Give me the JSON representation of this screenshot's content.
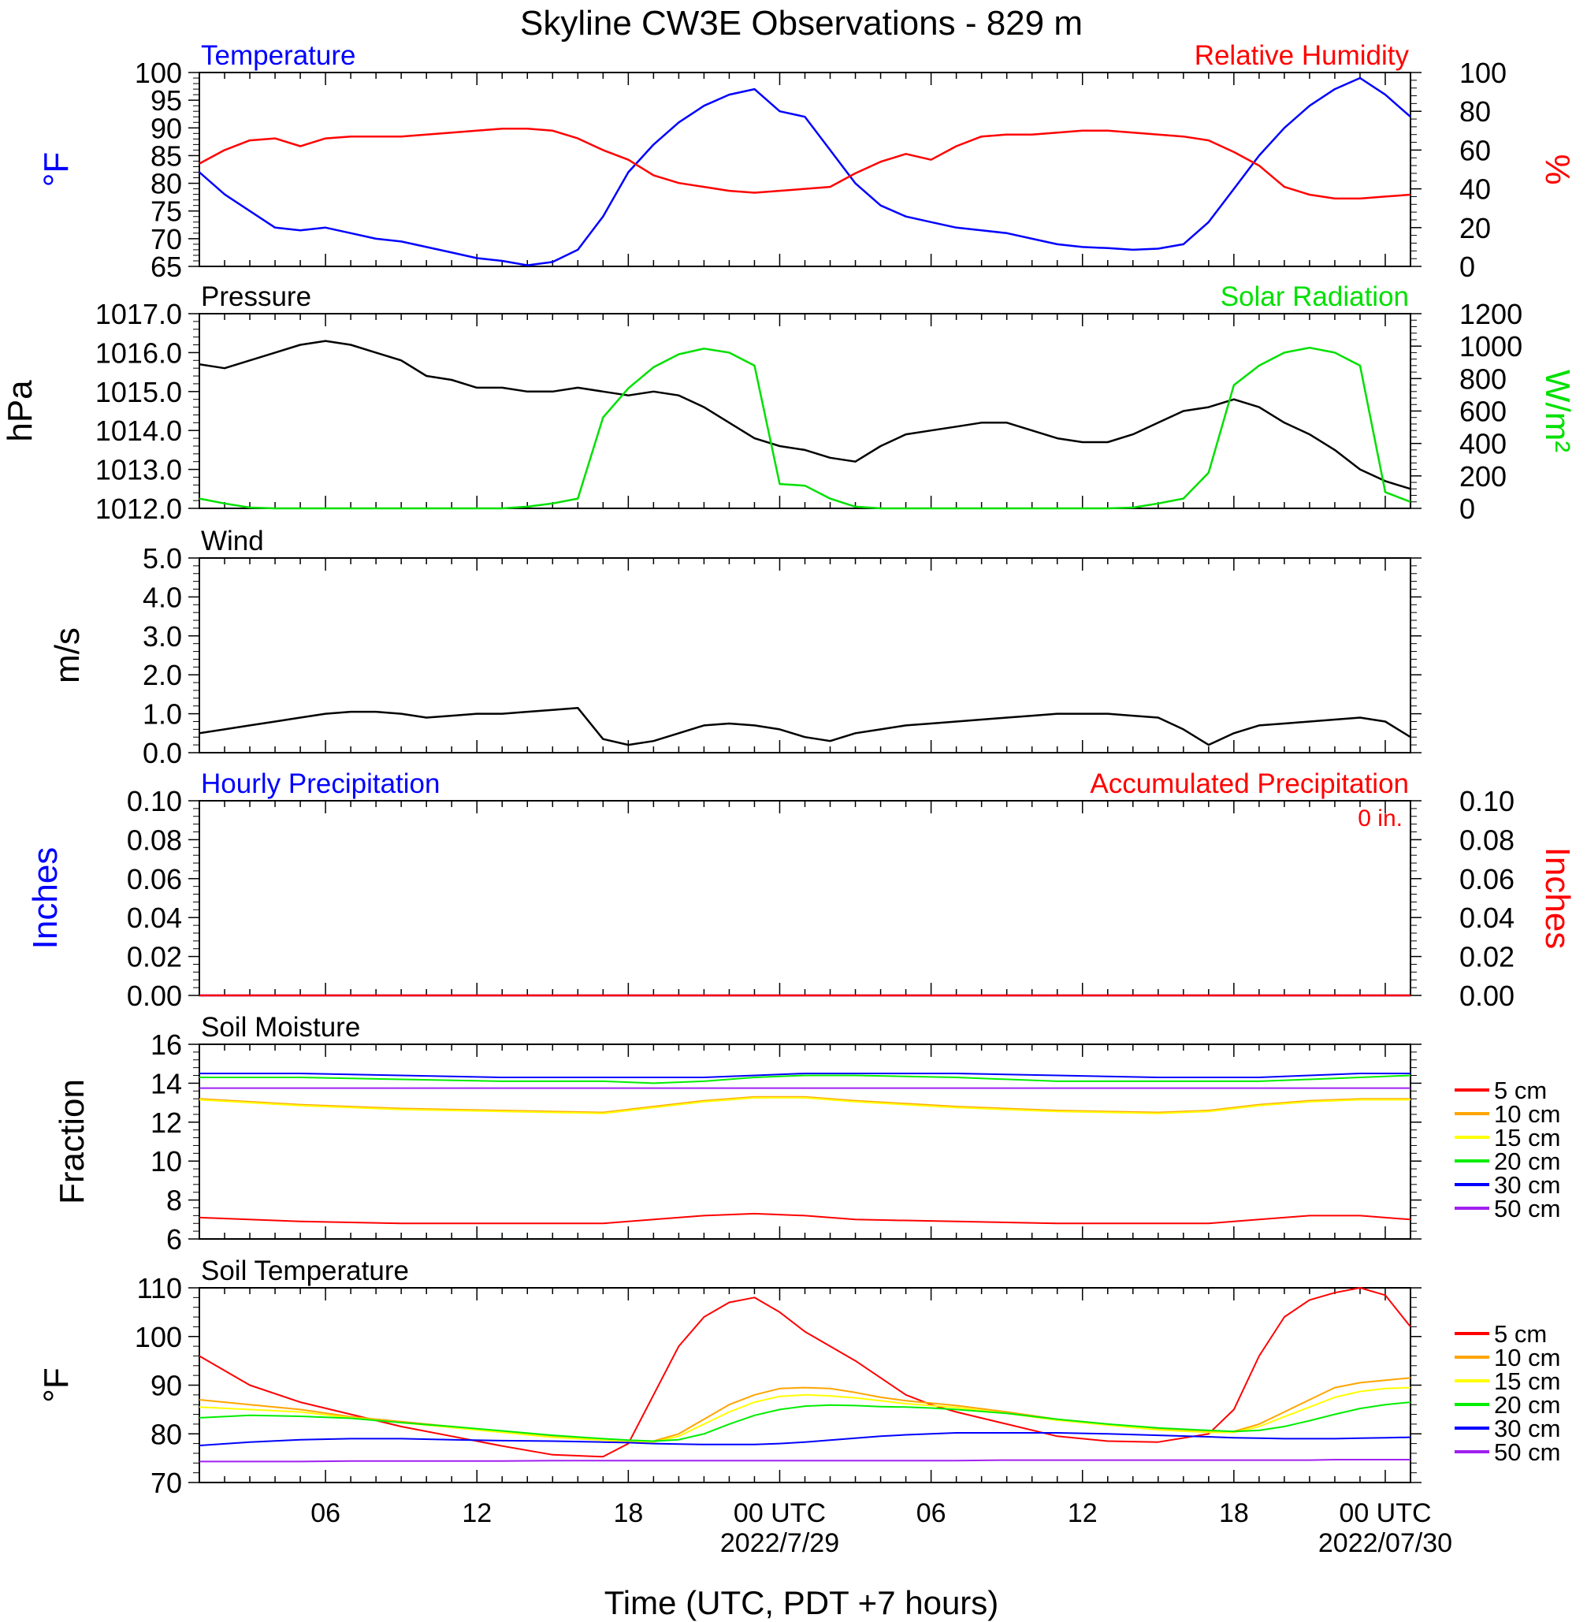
{
  "title": "Skyline CW3E Observations - 829 m",
  "xlabel": "Time (UTC, PDT +7 hours)",
  "x_ticks": [
    {
      "hour": 5,
      "label": "06",
      "date": ""
    },
    {
      "hour": 11,
      "label": "12",
      "date": ""
    },
    {
      "hour": 17,
      "label": "18",
      "date": ""
    },
    {
      "hour": 23,
      "label": "00 UTC",
      "date": "2022/7/29"
    },
    {
      "hour": 29,
      "label": "06",
      "date": ""
    },
    {
      "hour": 35,
      "label": "12",
      "date": ""
    },
    {
      "hour": 41,
      "label": "18",
      "date": ""
    },
    {
      "hour": 47,
      "label": "00 UTC",
      "date": "2022/07/30"
    }
  ],
  "colors": {
    "temp": "#0000ff",
    "rh": "#ff0000",
    "pressure": "#000000",
    "solar": "#00e000",
    "wind": "#000000",
    "barb": "#ff0000",
    "precip_hourly": "#0000ff",
    "precip_acc": "#ff0000"
  },
  "soil_legend": [
    {
      "label": "5 cm",
      "color": "#ff0000"
    },
    {
      "label": "10 cm",
      "color": "#ffa500"
    },
    {
      "label": "15 cm",
      "color": "#ffff00"
    },
    {
      "label": "20 cm",
      "color": "#00ee00"
    },
    {
      "label": "30 cm",
      "color": "#0000ff"
    },
    {
      "label": "50 cm",
      "color": "#a020f0"
    }
  ],
  "chart_data": [
    {
      "type": "line",
      "panel": "temperature_rh",
      "left_title": "Temperature",
      "right_title": "Relative Humidity",
      "ylabel_left": "oF",
      "ylabel_right": "%",
      "ylim_left": [
        65,
        100
      ],
      "ylim_right": [
        0,
        100
      ],
      "yticks_left": [
        65,
        70,
        75,
        80,
        85,
        90,
        95,
        100
      ],
      "yticks_right": [
        0,
        20,
        40,
        60,
        80,
        100
      ],
      "x_hours": [
        0,
        1,
        2,
        3,
        4,
        5,
        6,
        7,
        8,
        9,
        10,
        11,
        12,
        13,
        14,
        15,
        16,
        17,
        18,
        19,
        20,
        21,
        22,
        23,
        24,
        25,
        26,
        27,
        28,
        29,
        30,
        31,
        32,
        33,
        34,
        35,
        36,
        37,
        38,
        39,
        40,
        41,
        42,
        43,
        44,
        45,
        46,
        47,
        48
      ],
      "series": [
        {
          "name": "Temperature",
          "axis": "left",
          "values": [
            82,
            78,
            75,
            72,
            71.5,
            72,
            71,
            70,
            69.5,
            68.5,
            67.5,
            66.5,
            66,
            65.2,
            65.8,
            68,
            74,
            82,
            87,
            91,
            94,
            96,
            97,
            93,
            92,
            86,
            80,
            76,
            74,
            73,
            72,
            71.5,
            71,
            70,
            69,
            68.5,
            68.3,
            68,
            68.2,
            69,
            73,
            79,
            85,
            90,
            94,
            97,
            99,
            96,
            92
          ]
        },
        {
          "name": "Relative Humidity",
          "axis": "left_rh",
          "values": [
            53,
            60,
            65,
            66,
            62,
            66,
            67,
            67,
            67,
            68,
            69,
            70,
            71,
            71,
            70,
            66,
            60,
            55,
            47,
            43,
            41,
            39,
            38,
            39,
            40,
            41,
            48,
            54,
            58,
            55,
            62,
            67,
            68,
            68,
            69,
            70,
            70,
            69,
            68,
            67,
            65,
            59,
            52,
            41,
            37,
            35,
            35,
            36,
            37
          ]
        }
      ]
    },
    {
      "type": "line",
      "panel": "pressure_solar",
      "left_title": "Pressure",
      "right_title": "Solar Radiation",
      "ylabel_left": "hPa",
      "ylabel_right": "W/m2",
      "ylim_left": [
        1012,
        1017
      ],
      "ylim_right": [
        0,
        1200
      ],
      "yticks_left": [
        1012.0,
        1013.0,
        1014.0,
        1015.0,
        1016.0,
        1017.0
      ],
      "yticks_right": [
        0,
        200,
        400,
        600,
        800,
        1000,
        1200
      ],
      "x_hours": [
        0,
        1,
        2,
        3,
        4,
        5,
        6,
        7,
        8,
        9,
        10,
        11,
        12,
        13,
        14,
        15,
        16,
        17,
        18,
        19,
        20,
        21,
        22,
        23,
        24,
        25,
        26,
        27,
        28,
        29,
        30,
        31,
        32,
        33,
        34,
        35,
        36,
        37,
        38,
        39,
        40,
        41,
        42,
        43,
        44,
        45,
        46,
        47,
        48
      ],
      "series": [
        {
          "name": "Pressure",
          "axis": "left",
          "values": [
            1015.7,
            1015.6,
            1015.8,
            1016.0,
            1016.2,
            1016.3,
            1016.2,
            1016.0,
            1015.8,
            1015.4,
            1015.3,
            1015.1,
            1015.1,
            1015.0,
            1015.0,
            1015.1,
            1015.0,
            1014.9,
            1015.0,
            1014.9,
            1014.6,
            1014.2,
            1013.8,
            1013.6,
            1013.5,
            1013.3,
            1013.2,
            1013.6,
            1013.9,
            1014.0,
            1014.1,
            1014.2,
            1014.2,
            1014.0,
            1013.8,
            1013.7,
            1013.7,
            1013.9,
            1014.2,
            1014.5,
            1014.6,
            1014.8,
            1014.6,
            1014.2,
            1013.9,
            1013.5,
            1013.0,
            1012.7,
            1012.5
          ]
        },
        {
          "name": "Solar Radiation",
          "axis": "right",
          "values": [
            60,
            30,
            5,
            0,
            0,
            0,
            0,
            0,
            0,
            0,
            0,
            0,
            0,
            10,
            30,
            60,
            560,
            740,
            870,
            950,
            985,
            960,
            880,
            150,
            140,
            60,
            10,
            0,
            0,
            0,
            0,
            0,
            0,
            0,
            0,
            0,
            0,
            5,
            30,
            60,
            220,
            760,
            880,
            960,
            990,
            960,
            880,
            100,
            40
          ]
        }
      ]
    },
    {
      "type": "line",
      "panel": "wind",
      "left_title": "Wind",
      "ylabel_left": "m/s",
      "ylim_left": [
        0,
        5
      ],
      "yticks_left": [
        0.0,
        1.0,
        2.0,
        3.0,
        4.0,
        5.0
      ],
      "x_hours": [
        0,
        1,
        2,
        3,
        4,
        5,
        6,
        7,
        8,
        9,
        10,
        11,
        12,
        13,
        14,
        15,
        16,
        17,
        18,
        19,
        20,
        21,
        22,
        23,
        24,
        25,
        26,
        27,
        28,
        29,
        30,
        31,
        32,
        33,
        34,
        35,
        36,
        37,
        38,
        39,
        40,
        41,
        42,
        43,
        44,
        45,
        46,
        47,
        48
      ],
      "series": [
        {
          "name": "Wind",
          "axis": "left",
          "values": [
            0.5,
            0.6,
            0.7,
            0.8,
            0.9,
            1.0,
            1.05,
            1.05,
            1.0,
            0.9,
            0.95,
            1.0,
            1.0,
            1.05,
            1.1,
            1.15,
            0.35,
            0.2,
            0.3,
            0.5,
            0.7,
            0.75,
            0.7,
            0.6,
            0.4,
            0.3,
            0.5,
            0.6,
            0.7,
            0.75,
            0.8,
            0.85,
            0.9,
            0.95,
            1.0,
            1.0,
            1.0,
            0.95,
            0.9,
            0.6,
            0.2,
            0.5,
            0.7,
            0.75,
            0.8,
            0.85,
            0.9,
            0.8,
            0.4
          ]
        }
      ]
    },
    {
      "type": "line",
      "panel": "precipitation",
      "left_title": "Hourly Precipitation",
      "right_title": "Accumulated Precipitation",
      "annotation": "0 in.",
      "ylabel_left": "Inches",
      "ylabel_right": "Inches",
      "ylim_left": [
        0,
        0.1
      ],
      "ylim_right": [
        0,
        0.1
      ],
      "yticks_left": [
        0.0,
        0.02,
        0.04,
        0.06,
        0.08,
        0.1
      ],
      "yticks_right": [
        0.0,
        0.02,
        0.04,
        0.06,
        0.08,
        0.1
      ],
      "series": [
        {
          "name": "Hourly Precipitation",
          "values": [
            0,
            0
          ]
        },
        {
          "name": "Accumulated Precipitation",
          "values": [
            0,
            0
          ]
        }
      ]
    },
    {
      "type": "line",
      "panel": "soil_moisture",
      "left_title": "Soil Moisture",
      "ylabel_left": "Fraction",
      "ylim_left": [
        6,
        16
      ],
      "yticks_left": [
        6,
        8,
        10,
        12,
        14,
        16
      ],
      "x_hours": [
        0,
        4,
        8,
        12,
        16,
        18,
        20,
        22,
        24,
        26,
        30,
        34,
        38,
        40,
        42,
        44,
        46,
        48
      ],
      "series": [
        {
          "name": "5 cm",
          "values": [
            7.1,
            6.9,
            6.8,
            6.8,
            6.8,
            7.0,
            7.2,
            7.3,
            7.2,
            7.0,
            6.9,
            6.8,
            6.8,
            6.8,
            7.0,
            7.2,
            7.2,
            7.0
          ]
        },
        {
          "name": "10 cm",
          "values": [
            13.2,
            12.9,
            12.7,
            12.6,
            12.5,
            12.8,
            13.1,
            13.3,
            13.3,
            13.1,
            12.8,
            12.6,
            12.5,
            12.6,
            12.9,
            13.1,
            13.2,
            13.2
          ]
        },
        {
          "name": "15 cm",
          "values": [
            13.15,
            12.85,
            12.65,
            12.55,
            12.45,
            12.75,
            13.05,
            13.25,
            13.25,
            13.05,
            12.75,
            12.55,
            12.45,
            12.55,
            12.85,
            13.05,
            13.15,
            13.15
          ]
        },
        {
          "name": "20 cm",
          "values": [
            14.3,
            14.3,
            14.2,
            14.1,
            14.1,
            14.0,
            14.1,
            14.3,
            14.4,
            14.4,
            14.3,
            14.1,
            14.1,
            14.1,
            14.1,
            14.2,
            14.3,
            14.4
          ]
        },
        {
          "name": "30 cm",
          "values": [
            14.5,
            14.5,
            14.4,
            14.3,
            14.3,
            14.3,
            14.3,
            14.4,
            14.5,
            14.5,
            14.5,
            14.4,
            14.3,
            14.3,
            14.3,
            14.4,
            14.5,
            14.5
          ]
        },
        {
          "name": "50 cm",
          "values": [
            13.75,
            13.75,
            13.75,
            13.75,
            13.75,
            13.75,
            13.75,
            13.75,
            13.75,
            13.75,
            13.75,
            13.75,
            13.75,
            13.75,
            13.75,
            13.75,
            13.75,
            13.75
          ]
        }
      ]
    },
    {
      "type": "line",
      "panel": "soil_temperature",
      "left_title": "Soil Temperature",
      "ylabel_left": "oF",
      "ylim_left": [
        70,
        110
      ],
      "yticks_left": [
        70,
        80,
        90,
        100,
        110
      ],
      "x_hours": [
        0,
        2,
        4,
        6,
        8,
        10,
        12,
        14,
        16,
        17,
        18,
        19,
        20,
        21,
        22,
        23,
        24,
        25,
        26,
        27,
        28,
        29,
        30,
        32,
        34,
        36,
        38,
        40,
        41,
        42,
        43,
        44,
        45,
        46,
        47,
        48
      ],
      "series": [
        {
          "name": "5 cm",
          "values": [
            96,
            90,
            86.5,
            84,
            81.5,
            79.5,
            77.5,
            75.7,
            75.3,
            78,
            88,
            98,
            104,
            107,
            108,
            105,
            101,
            98,
            95,
            91.5,
            88,
            86,
            84.5,
            82,
            79.5,
            78.5,
            78.3,
            80,
            85,
            96,
            104,
            107.5,
            109,
            110,
            108.5,
            102
          ]
        },
        {
          "name": "10 cm",
          "values": [
            87,
            86,
            85,
            83.5,
            82.5,
            81.5,
            80.5,
            79.5,
            78.8,
            78.5,
            78.5,
            80,
            83,
            86,
            88,
            89.3,
            89.5,
            89.3,
            88.5,
            87.5,
            86.8,
            86.3,
            85.8,
            84.5,
            83,
            82,
            81,
            80.5,
            80.5,
            82,
            84.5,
            87,
            89.5,
            90.5,
            91,
            91.5
          ]
        },
        {
          "name": "15 cm",
          "values": [
            85.5,
            85,
            84.5,
            83.3,
            82.3,
            81.3,
            80.3,
            79.3,
            78.7,
            78.4,
            78.3,
            79.5,
            82,
            84.5,
            86.5,
            87.7,
            88,
            87.8,
            87.4,
            86.8,
            86.2,
            85.8,
            85.4,
            84.2,
            82.8,
            81.8,
            80.8,
            80.3,
            80.3,
            81.5,
            83.5,
            85.5,
            87.5,
            88.7,
            89.3,
            89.5
          ]
        },
        {
          "name": "20 cm",
          "values": [
            83.3,
            83.8,
            83.6,
            83.2,
            82.3,
            81.5,
            80.6,
            79.7,
            79,
            78.7,
            78.5,
            78.8,
            80,
            82,
            83.8,
            85,
            85.7,
            85.9,
            85.8,
            85.6,
            85.5,
            85.3,
            85,
            84.2,
            83,
            82,
            81.2,
            80.7,
            80.5,
            80.7,
            81.5,
            82.7,
            84,
            85.2,
            86,
            86.5
          ]
        },
        {
          "name": "30 cm",
          "values": [
            77.6,
            78.3,
            78.8,
            79,
            79,
            78.8,
            78.6,
            78.5,
            78.3,
            78.2,
            78,
            77.9,
            77.8,
            77.8,
            77.8,
            78,
            78.3,
            78.7,
            79.1,
            79.5,
            79.8,
            80,
            80.2,
            80.2,
            80.2,
            80,
            79.7,
            79.4,
            79.2,
            79.1,
            79,
            79,
            79,
            79.1,
            79.2,
            79.3
          ]
        },
        {
          "name": "50 cm",
          "values": [
            74.3,
            74.3,
            74.3,
            74.4,
            74.4,
            74.4,
            74.4,
            74.5,
            74.5,
            74.5,
            74.5,
            74.5,
            74.5,
            74.5,
            74.5,
            74.5,
            74.5,
            74.5,
            74.5,
            74.5,
            74.5,
            74.5,
            74.5,
            74.6,
            74.6,
            74.6,
            74.6,
            74.6,
            74.6,
            74.6,
            74.6,
            74.6,
            74.7,
            74.7,
            74.7,
            74.7
          ]
        }
      ]
    }
  ]
}
